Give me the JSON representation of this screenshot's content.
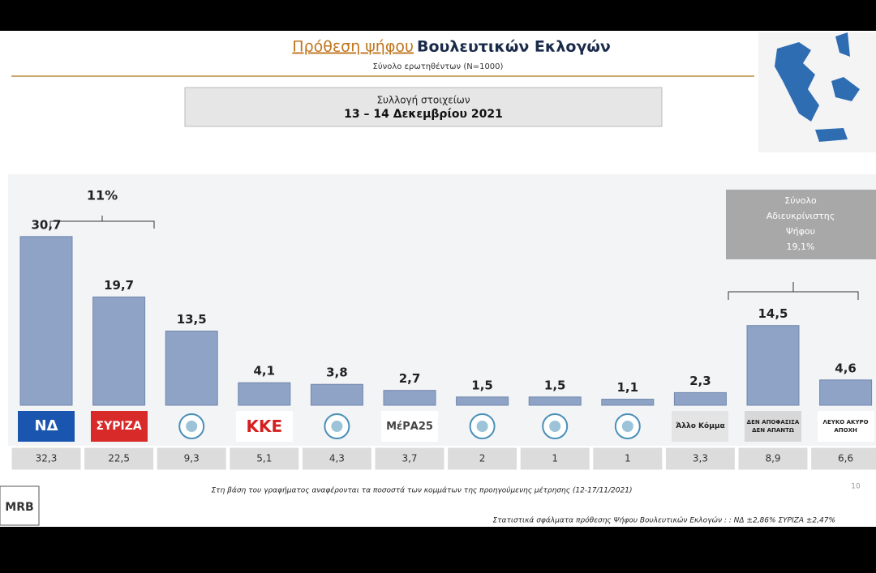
{
  "chart_data": {
    "type": "bar",
    "title": "Πρόθεση ψήφου",
    "title_rest": "Βουλευτικών Εκλογών",
    "subtitle": "Σύνολο ερωτηθέντων (Ν=1000)",
    "period_label": "Συλλογή στοιχείων",
    "period": "13 – 14 Δεκεμβρίου 2021",
    "categories": [
      "ΝΔ",
      "ΣΥΡΙΖΑ",
      null,
      "ΚΚΕ",
      null,
      "ΜέΡΑ25",
      null,
      null,
      null,
      "Άλλο Κόμμα",
      "ΔΕΝ ΑΠΟΦΑΣΙΣΑ ΔΕΝ ΑΠΑΝΤΩ",
      "ΛΕΥΚΟ ΑΚΥΡΟ ΑΠΟΧΗ"
    ],
    "values": [
      30.7,
      19.7,
      13.5,
      4.1,
      3.8,
      2.7,
      1.5,
      1.5,
      1.1,
      2.3,
      14.5,
      4.6
    ],
    "value_labels": [
      "30,7",
      "19,7",
      "13,5",
      "4,1",
      "3,8",
      "2,7",
      "1,5",
      "1,5",
      "1,1",
      "2,3",
      "14,5",
      "4,6"
    ],
    "color": "#8ea3c6",
    "previous_values": [
      32.3,
      22.5,
      9.3,
      5.1,
      4.3,
      3.7,
      2,
      1,
      1,
      3.3,
      8.9,
      6.6
    ],
    "previous_labels": [
      "32,3",
      "22,5",
      "9,3",
      "5,1",
      "4,3",
      "3,7",
      "2",
      "1",
      "1",
      "3,3",
      "8,9",
      "6,6"
    ],
    "gap_annotation": "11%",
    "undecided_box": [
      "Σύνολο",
      "Αδιευκρίνιστης",
      "Ψήφου",
      "19,1%"
    ],
    "footnote": "Στη βάση του γραφήματος αναφέρονται τα ποσοστά των κομμάτων της προηγούμενης μέτρησης (12-17/11/2021)",
    "page_number": "10",
    "margin_note": "Στατιστικά σφάλματα πρόθεσης Ψήφου Βουλευτικών Εκλογών : : ΝΔ ±2,86% ΣΥΡΙΖΑ ±2,47%",
    "source_logo": "MRB"
  }
}
